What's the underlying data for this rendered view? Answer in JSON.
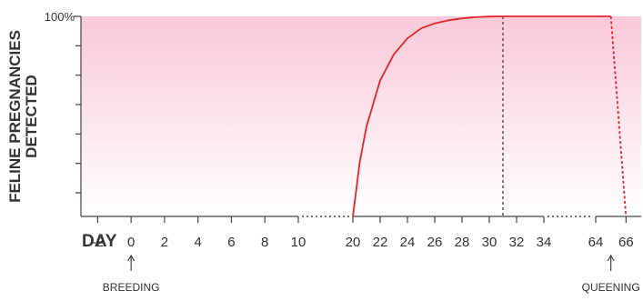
{
  "chart_data": {
    "type": "line",
    "ylabel_lines": [
      "FELINE PREGNANCIES",
      "DETECTED"
    ],
    "y_top_label": "100%",
    "x_axis_title": "DAY",
    "x_ticks": [
      "-2",
      "0",
      "2",
      "4",
      "6",
      "8",
      "10",
      "20",
      "22",
      "24",
      "26",
      "28",
      "30",
      "32",
      "34",
      "64",
      "66"
    ],
    "x_axis_breaks": [
      [
        10,
        20
      ],
      [
        34,
        64
      ]
    ],
    "annotations": [
      {
        "text": "BREEDING",
        "x": 0
      },
      {
        "text": "QUEENING",
        "x": 65
      }
    ],
    "series": [
      {
        "color": "#e3242b",
        "points": [
          [
            20,
            0
          ],
          [
            20.5,
            27
          ],
          [
            21,
            45
          ],
          [
            22,
            68
          ],
          [
            23,
            81
          ],
          [
            24,
            89
          ],
          [
            25,
            94
          ],
          [
            26,
            96.5
          ],
          [
            27,
            98
          ],
          [
            28,
            99
          ],
          [
            29,
            99.6
          ],
          [
            30,
            99.9
          ],
          [
            31,
            100
          ],
          [
            64,
            100
          ],
          [
            65,
            100
          ]
        ]
      },
      {
        "color": "#e3242b",
        "style": "dashed",
        "points": [
          [
            65,
            100
          ],
          [
            66,
            0
          ]
        ]
      }
    ],
    "reference_lines": [
      {
        "x": 31,
        "style": "dotted",
        "color": "#555555"
      }
    ],
    "ylim": [
      0,
      100
    ],
    "y_minor_tick_count": 7,
    "background_gradient": [
      "#f9c9d8",
      "#ffffff"
    ]
  }
}
